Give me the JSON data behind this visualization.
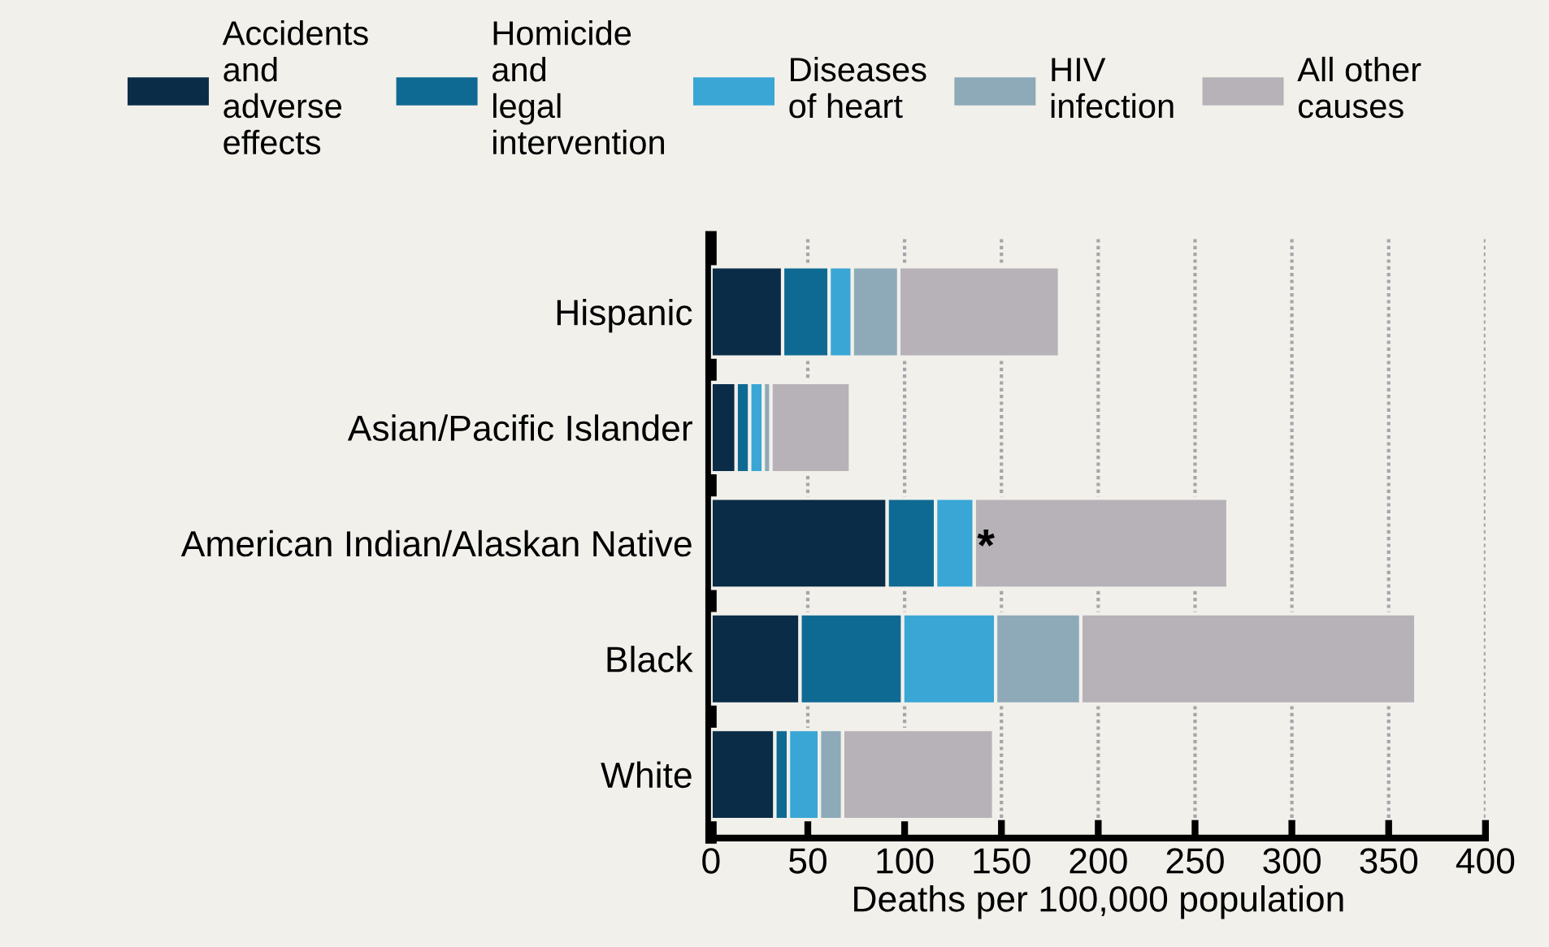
{
  "chart_data": {
    "type": "bar",
    "orientation": "horizontal",
    "stacked": true,
    "categories": [
      "Hispanic",
      "Asian/Pacific Islander",
      "American Indian/Alaskan Native",
      "Black",
      "White"
    ],
    "series": [
      {
        "name": "Accidents\nand\nadverse\neffects",
        "color": "#0b2c47",
        "values": [
          37,
          13,
          91,
          46,
          33
        ]
      },
      {
        "name": "Homicide\nand\nlegal\nintervention",
        "color": "#0f6a93",
        "values": [
          24,
          7,
          25,
          53,
          7
        ]
      },
      {
        "name": "Diseases\nof heart",
        "color": "#39a6d6",
        "values": [
          12,
          7,
          20,
          48,
          16
        ]
      },
      {
        "name": "HIV\ninfection",
        "color": "#8eaab8",
        "values": [
          24,
          4,
          null,
          44,
          12
        ]
      },
      {
        "name": "All other\ncauses",
        "color": "#b7b2b7",
        "values": [
          83,
          41,
          131,
          173,
          78
        ]
      }
    ],
    "annotations": [
      {
        "text": "*",
        "x": 142,
        "y": "American Indian/Alaskan Native"
      }
    ],
    "xlabel": "Deaths per 100,000 population",
    "xlim": [
      0,
      400
    ],
    "xticks": [
      0,
      50,
      100,
      150,
      200,
      250,
      300,
      350,
      400
    ],
    "grid": "x",
    "legend": "top"
  }
}
